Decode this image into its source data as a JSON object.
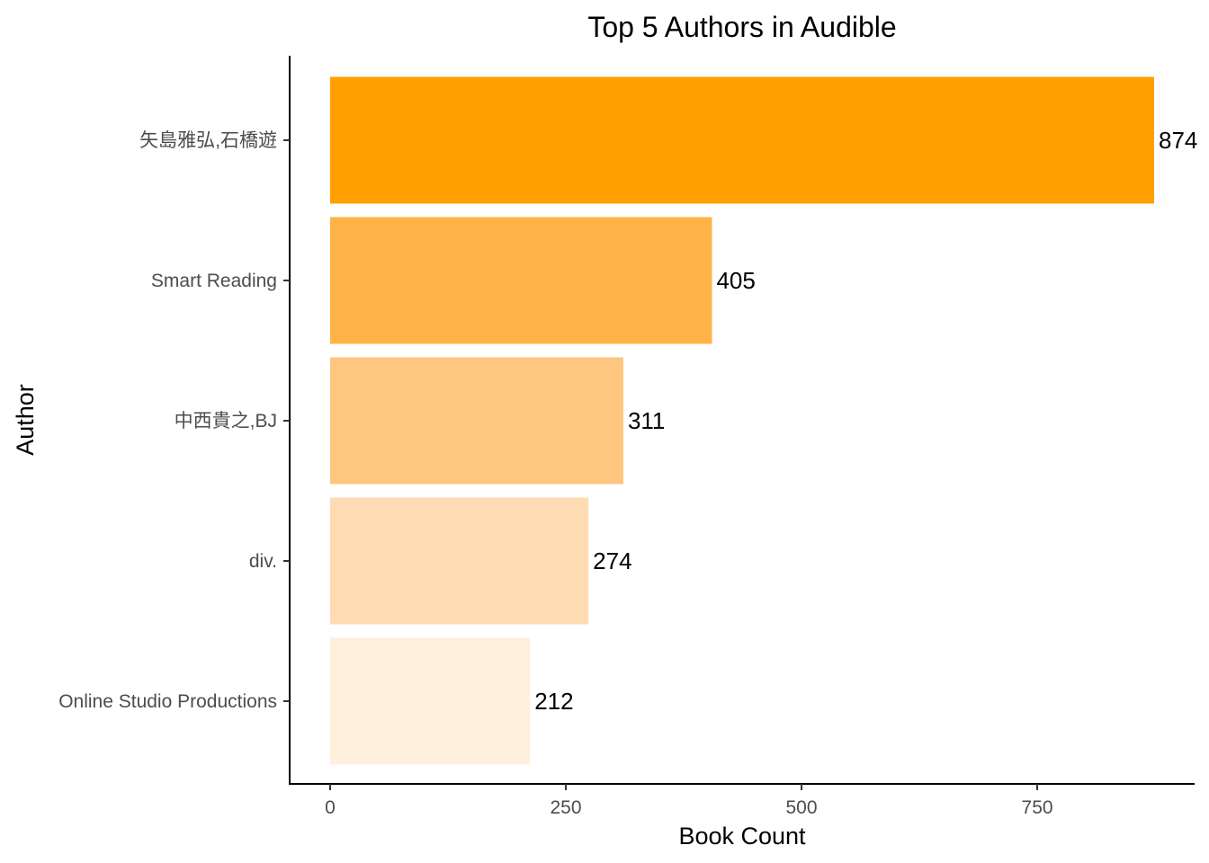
{
  "chart_data": {
    "type": "bar",
    "orientation": "horizontal",
    "title": "Top 5 Authors in Audible",
    "xlabel": "Book Count",
    "ylabel": "Author",
    "categories": [
      "矢島雅弘,石橋遊",
      "Smart Reading",
      "中西貴之,BJ",
      "div.",
      "Online Studio Productions"
    ],
    "values": [
      874,
      405,
      311,
      274,
      212
    ],
    "data_labels": [
      "874",
      "405",
      "311",
      "274",
      "212"
    ],
    "bar_colors": [
      "#ffa000",
      "#ffb347",
      "#ffc680",
      "#ffdbb3",
      "#ffefdd"
    ],
    "xlim": [
      0,
      874
    ],
    "xticks": [
      0,
      250,
      500,
      750
    ],
    "xtick_labels": [
      "0",
      "250",
      "500",
      "750"
    ],
    "grid": false,
    "legend": "none"
  }
}
